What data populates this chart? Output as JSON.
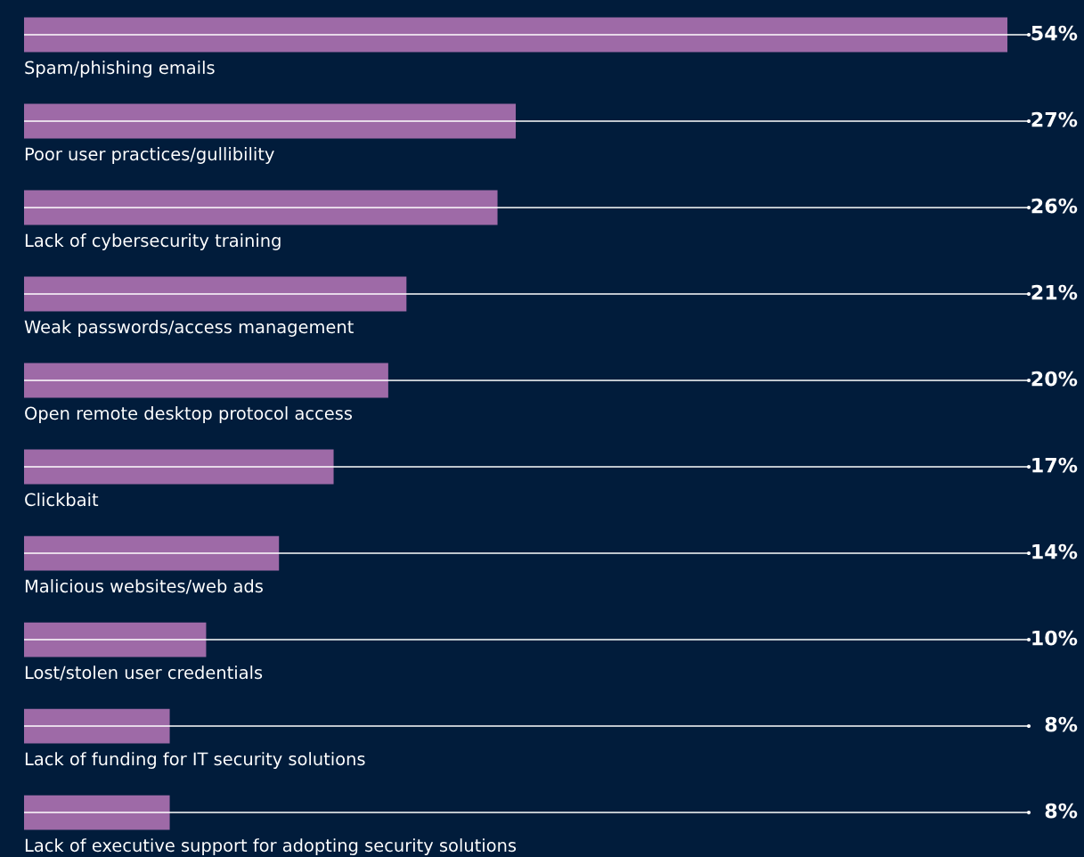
{
  "chart_data": {
    "type": "bar",
    "orientation": "horizontal",
    "categories": [
      "Spam/phishing emails",
      "Poor user practices/gullibility",
      "Lack of cybersecurity training",
      "Weak passwords/access management",
      "Open remote desktop protocol access",
      "Clickbait",
      "Malicious websites/web ads",
      "Lost/stolen user credentials",
      "Lack of funding for IT security solutions",
      "Lack of executive support for adopting security solutions"
    ],
    "values": [
      54,
      27,
      26,
      21,
      20,
      17,
      14,
      10,
      8,
      8
    ],
    "value_labels": [
      "54%",
      "27%",
      "26%",
      "21%",
      "20%",
      "17%",
      "14%",
      "10%",
      "8%",
      "8%"
    ],
    "color": "#9e6aa7"
  }
}
